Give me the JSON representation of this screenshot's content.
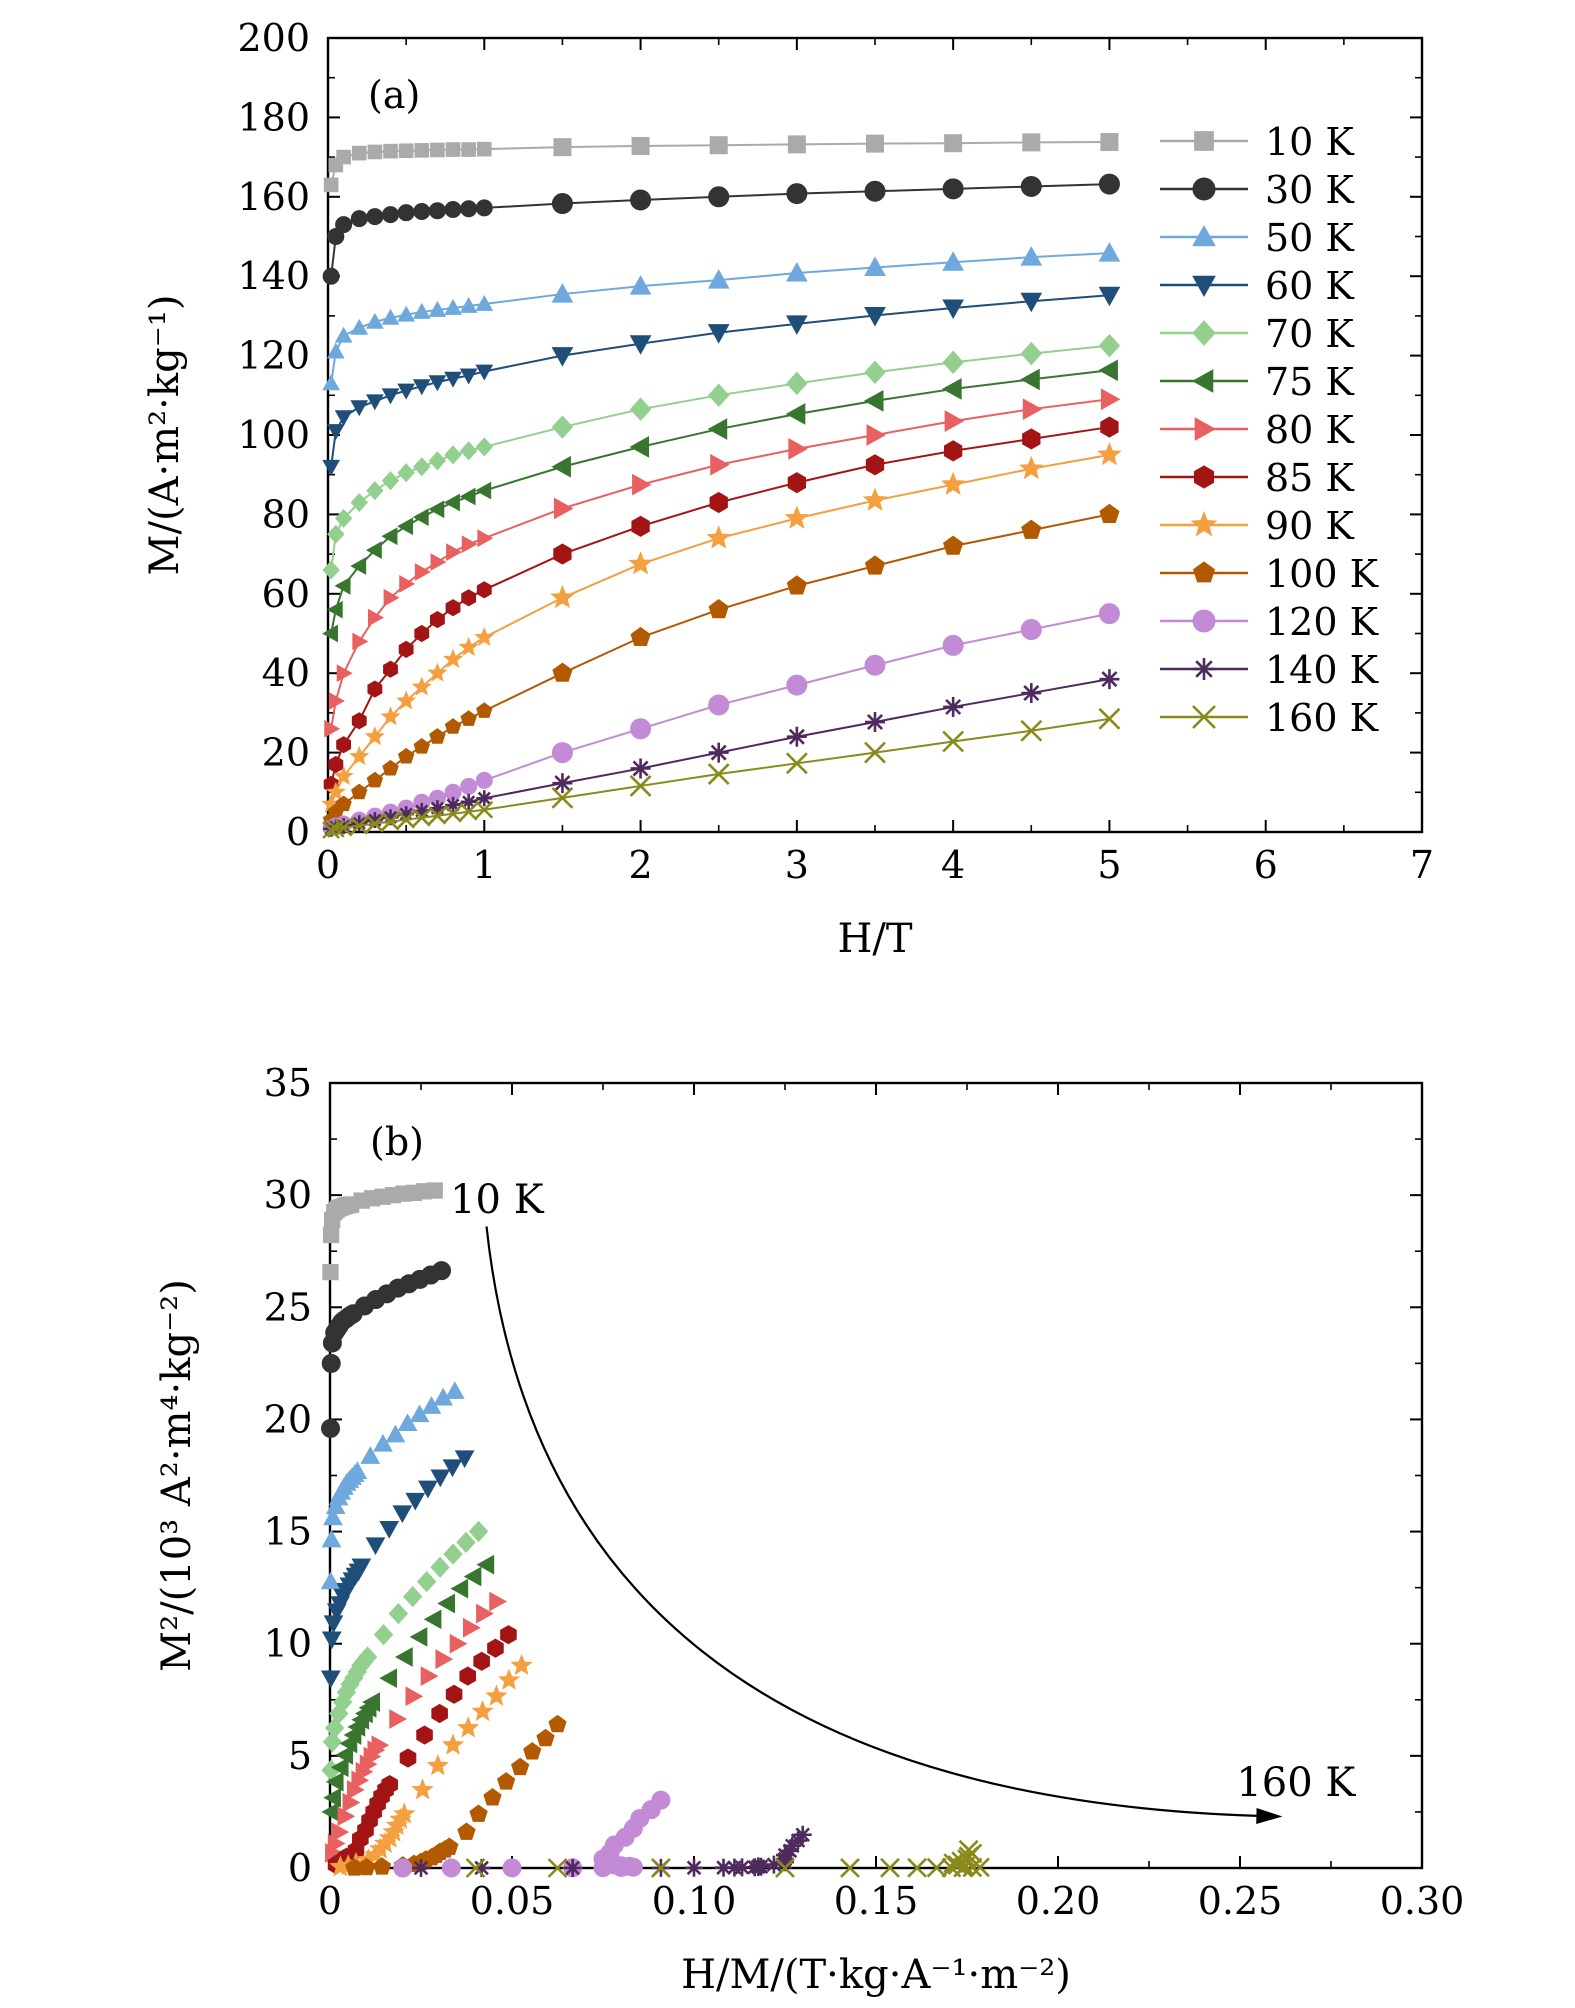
{
  "chart_data": [
    {
      "type": "line",
      "panel_label": "(a)",
      "xlabel": "H/T",
      "ylabel": "M/(A·m²·kg⁻¹)",
      "xlim": [
        0,
        7
      ],
      "ylim": [
        0,
        200
      ],
      "xticks": [
        "0",
        "1",
        "2",
        "3",
        "4",
        "5",
        "6",
        "7"
      ],
      "yticks": [
        "0",
        "20",
        "40",
        "60",
        "80",
        "100",
        "120",
        "140",
        "160",
        "180",
        "200"
      ],
      "grid": false,
      "legend": "right",
      "x": [
        0.02,
        0.05,
        0.1,
        0.2,
        0.3,
        0.4,
        0.5,
        0.6,
        0.7,
        0.8,
        0.9,
        1.0,
        1.5,
        2.0,
        2.5,
        3.0,
        3.5,
        4.0,
        4.5,
        5.0
      ],
      "series": [
        {
          "name": "10 K",
          "marker": "square",
          "color": "#aaaaaa",
          "values": [
            163,
            168,
            170,
            171,
            171.3,
            171.5,
            171.6,
            171.7,
            171.8,
            171.9,
            171.9,
            172,
            172.5,
            172.8,
            173,
            173.2,
            173.4,
            173.5,
            173.7,
            173.8
          ]
        },
        {
          "name": "30 K",
          "marker": "circle",
          "color": "#333333",
          "values": [
            140,
            150,
            153,
            154.5,
            155,
            155.5,
            156,
            156.3,
            156.5,
            156.8,
            157,
            157.2,
            158.3,
            159.2,
            160,
            160.8,
            161.4,
            162,
            162.6,
            163.2
          ]
        },
        {
          "name": "50 K",
          "marker": "triangle-up",
          "color": "#6fa8dc",
          "values": [
            113,
            121,
            125,
            127,
            128.5,
            129.5,
            130.3,
            131,
            131.5,
            132,
            132.5,
            133,
            135.5,
            137.5,
            139,
            140.8,
            142.2,
            143.5,
            144.8,
            145.8
          ]
        },
        {
          "name": "60 K",
          "marker": "triangle-down",
          "color": "#1f4e79",
          "values": [
            92,
            101,
            104.5,
            107,
            108.5,
            110,
            111.2,
            112.3,
            113.3,
            114.2,
            115,
            116,
            120,
            123,
            125.8,
            128,
            130.1,
            132,
            133.7,
            135.2
          ]
        },
        {
          "name": "70 K",
          "marker": "diamond",
          "color": "#93cf8f",
          "values": [
            66,
            75,
            79,
            83,
            86,
            88.5,
            90.5,
            92,
            93.5,
            95,
            96,
            97,
            102,
            106.5,
            110,
            113,
            115.8,
            118.3,
            120.5,
            122.5
          ]
        },
        {
          "name": "75 K",
          "marker": "triangle-left",
          "color": "#38762f",
          "values": [
            50,
            56,
            62,
            67,
            71,
            74.5,
            77,
            79.3,
            81.3,
            83,
            84.5,
            86,
            92,
            97,
            101.5,
            105.3,
            108.6,
            111.6,
            114,
            116.3
          ]
        },
        {
          "name": "80 K",
          "marker": "triangle-right",
          "color": "#e86060",
          "values": [
            26,
            33,
            40,
            48,
            54,
            59,
            62.5,
            65.5,
            68,
            70.5,
            72.5,
            74,
            81.5,
            87.5,
            92.5,
            96.5,
            100,
            103.5,
            106.5,
            109
          ]
        },
        {
          "name": "85 K",
          "marker": "hexagon",
          "color": "#a31515",
          "values": [
            12,
            17,
            22,
            28,
            36,
            41,
            46,
            50,
            53.5,
            56.5,
            59,
            61,
            70,
            77,
            83,
            88,
            92.5,
            96,
            99,
            102
          ]
        },
        {
          "name": "90 K",
          "marker": "star",
          "color": "#f4a040",
          "values": [
            7,
            10,
            14,
            19,
            24,
            29,
            33,
            36.5,
            40,
            43.5,
            46.5,
            49,
            59,
            67.5,
            74,
            79,
            83.5,
            87.5,
            91.5,
            95
          ]
        },
        {
          "name": "100 K",
          "marker": "pentagon",
          "color": "#b35a00",
          "values": [
            3,
            5,
            7,
            10,
            13,
            16,
            19,
            21.5,
            24,
            26.5,
            28.5,
            30.5,
            40,
            49,
            56,
            62,
            67,
            72,
            76,
            80
          ]
        },
        {
          "name": "120 K",
          "marker": "ball",
          "color": "#c38ad6",
          "values": [
            1,
            1.5,
            2,
            3,
            4,
            5,
            6,
            7.5,
            8.5,
            10,
            11.5,
            13,
            20,
            26,
            32,
            37,
            42,
            47,
            51,
            55
          ]
        },
        {
          "name": "140 K",
          "marker": "asterisk",
          "color": "#4e2a5e",
          "values": [
            0.8,
            1.2,
            1.5,
            2.2,
            3,
            3.7,
            4.5,
            5.3,
            6,
            6.8,
            7.6,
            8.5,
            12.3,
            16,
            20,
            24,
            27.7,
            31.5,
            35,
            38.5
          ]
        },
        {
          "name": "160 K",
          "marker": "x",
          "color": "#8a8a1a",
          "values": [
            0.5,
            0.8,
            1.1,
            1.6,
            2.1,
            2.6,
            3.1,
            3.6,
            4.1,
            4.6,
            5.1,
            5.6,
            8.6,
            11.6,
            14.6,
            17.3,
            20,
            22.8,
            25.5,
            28.5
          ]
        }
      ]
    },
    {
      "type": "scatter",
      "panel_label": "(b)",
      "xlabel": "H/M/(T·kg·A⁻¹·m⁻²)",
      "ylabel": "M²/(10³ A²·m⁴·kg⁻²)",
      "xlim": [
        0,
        0.3
      ],
      "ylim": [
        0,
        35
      ],
      "xticks": [
        "0",
        "0.05",
        "0.10",
        "0.15",
        "0.20",
        "0.25",
        "0.30"
      ],
      "yticks": [
        "0",
        "5",
        "10",
        "15",
        "20",
        "25",
        "30",
        "35"
      ],
      "grid": false,
      "annotations": [
        {
          "text": "10 K",
          "x": 0.033,
          "y": 29.2
        },
        {
          "text": "160 K",
          "x": 0.249,
          "y": 3.2
        }
      ],
      "arrow": {
        "from": [
          0.043,
          28.6
        ],
        "control": [
          0.06,
          3
        ],
        "to": [
          0.26,
          2.3
        ]
      }
    }
  ]
}
